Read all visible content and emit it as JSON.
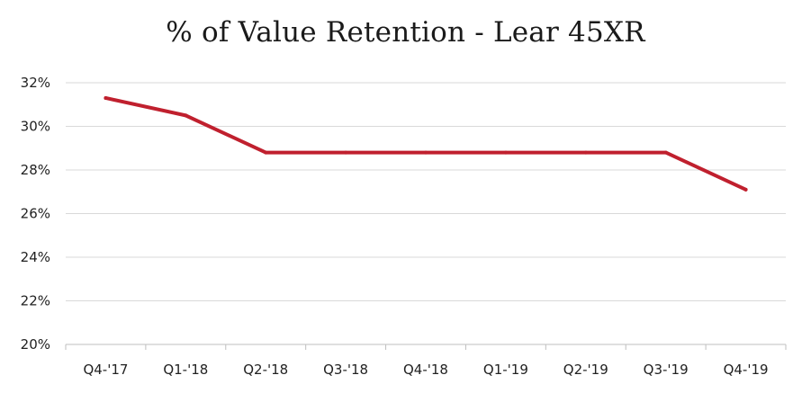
{
  "chart_data": {
    "type": "line",
    "title": "% of Value Retention - Lear 45XR",
    "xlabel": "",
    "ylabel": "",
    "categories": [
      "Q4-'17",
      "Q1-'18",
      "Q2-'18",
      "Q3-'18",
      "Q4-'18",
      "Q1-'19",
      "Q2-'19",
      "Q3-'19",
      "Q4-'19"
    ],
    "series": [
      {
        "values": [
          31.3,
          30.5,
          28.8,
          28.8,
          28.8,
          28.8,
          28.8,
          28.8,
          27.1
        ]
      }
    ],
    "ylim": [
      20,
      32
    ],
    "yticks": [
      20,
      22,
      24,
      26,
      28,
      30,
      32
    ],
    "ytick_labels": [
      "20%",
      "22%",
      "24%",
      "26%",
      "28%",
      "30%",
      "32%"
    ],
    "grid": true,
    "legend": "none",
    "colors": {
      "line": "#c0202e",
      "grid": "#d9d9d9",
      "axis": "#bfbfbf"
    }
  }
}
